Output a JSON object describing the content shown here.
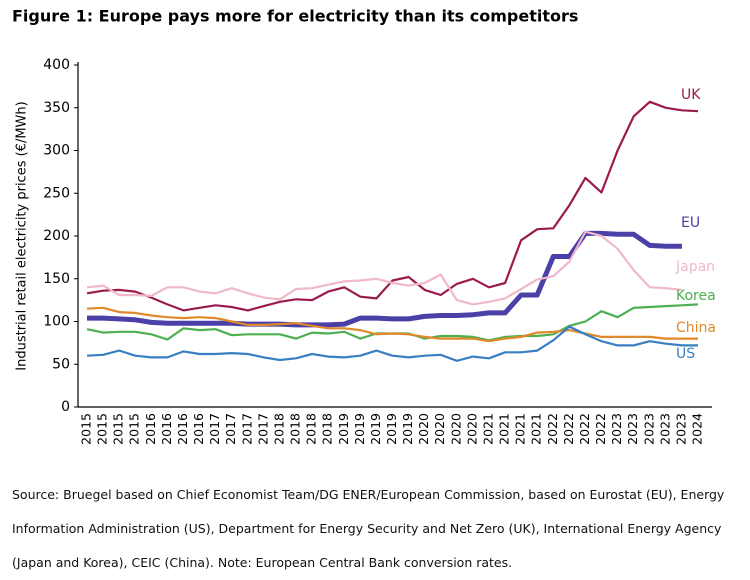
{
  "chart_data": {
    "type": "line",
    "title": "Figure 1: Europe pays more for electricity than its competitors",
    "y_label": "Industrial retail electricity prices (€/MWh)",
    "source": "Source: Bruegel based on Chief Economist Team/DG ENER/European Commission, based on Eurostat (EU), Energy Information Administration (US), Department for Energy Security and Net Zero (UK), International Energy Agency (Japan and Korea), CEIC (China). Note: European Central Bank conversion rates.",
    "categories": [
      "2015",
      "2015",
      "2015",
      "2015",
      "2016",
      "2016",
      "2016",
      "2016",
      "2017",
      "2017",
      "2017",
      "2017",
      "2018",
      "2018",
      "2018",
      "2018",
      "2019",
      "2019",
      "2019",
      "2019",
      "2019",
      "2020",
      "2020",
      "2020",
      "2020",
      "2021",
      "2021",
      "2021",
      "2021",
      "2022",
      "2022",
      "2022",
      "2022",
      "2023",
      "2023",
      "2023",
      "2023",
      "2023",
      "2024"
    ],
    "series": [
      {
        "name": "UK",
        "color": "#9b1b4f",
        "width": 2.2,
        "values": [
          133,
          136,
          137,
          135,
          128,
          120,
          113,
          116,
          119,
          117,
          113,
          118,
          123,
          126,
          125,
          135,
          140,
          129,
          127,
          148,
          152,
          137,
          131,
          144,
          150,
          140,
          145,
          195,
          208,
          209,
          236,
          268,
          251,
          300,
          340,
          357,
          350,
          347,
          346
        ]
      },
      {
        "name": "EU",
        "color": "#4b3fa8",
        "width": 5,
        "values": [
          104,
          104,
          103,
          102,
          99,
          98,
          98,
          98,
          98,
          98,
          97,
          97,
          97,
          96,
          96,
          96,
          97,
          104,
          104,
          103,
          103,
          106,
          107,
          107,
          108,
          110,
          110,
          131,
          131,
          176,
          176,
          203,
          203,
          202,
          202,
          189,
          188,
          188,
          null
        ]
      },
      {
        "name": "Japan",
        "color": "#f0b8c8",
        "width": 2.2,
        "values": [
          140,
          142,
          131,
          131,
          130,
          140,
          140,
          135,
          133,
          139,
          133,
          128,
          126,
          138,
          139,
          143,
          147,
          148,
          150,
          145,
          142,
          145,
          155,
          125,
          120,
          123,
          127,
          138,
          149,
          153,
          170,
          205,
          200,
          185,
          160,
          140,
          139,
          137,
          null
        ]
      },
      {
        "name": "Korea",
        "color": "#4caf50",
        "width": 2.2,
        "values": [
          91,
          87,
          88,
          88,
          85,
          79,
          92,
          90,
          91,
          84,
          85,
          85,
          85,
          80,
          87,
          86,
          88,
          80,
          86,
          86,
          86,
          80,
          83,
          83,
          82,
          78,
          82,
          83,
          83,
          85,
          95,
          100,
          112,
          105,
          116,
          117,
          118,
          119,
          120
        ]
      },
      {
        "name": "China",
        "color": "#e0892a",
        "width": 2.2,
        "values": [
          115,
          116,
          111,
          110,
          107,
          105,
          104,
          105,
          104,
          100,
          96,
          96,
          97,
          98,
          95,
          92,
          92,
          90,
          85,
          86,
          85,
          82,
          80,
          80,
          80,
          77,
          80,
          82,
          87,
          88,
          90,
          86,
          82,
          82,
          82,
          82,
          80,
          80,
          80
        ]
      },
      {
        "name": "US",
        "color": "#3a7fc1",
        "width": 2.2,
        "values": [
          60,
          61,
          66,
          60,
          58,
          58,
          65,
          62,
          62,
          63,
          62,
          58,
          55,
          57,
          62,
          59,
          58,
          60,
          66,
          60,
          58,
          60,
          61,
          54,
          59,
          57,
          64,
          64,
          66,
          78,
          94,
          85,
          77,
          72,
          72,
          77,
          74,
          72,
          72
        ]
      }
    ],
    "ylim": [
      0,
      400
    ],
    "yticks": [
      0,
      50,
      100,
      150,
      200,
      250,
      300,
      350,
      400
    ],
    "grid": false
  }
}
